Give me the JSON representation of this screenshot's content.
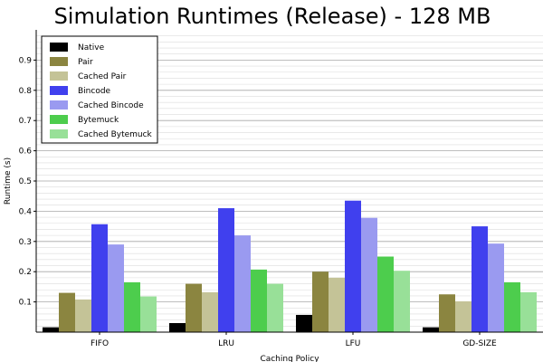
{
  "chart_data": {
    "type": "bar",
    "title": "Simulation Runtimes (Release) - 128 MB",
    "xlabel": "Caching Policy",
    "ylabel": "Runtime (s)",
    "ylim": [
      0,
      1.0
    ],
    "yticks": [
      "0.1",
      "0.2",
      "0.3",
      "0.4",
      "0.5",
      "0.6",
      "0.7",
      "0.8",
      "0.9"
    ],
    "grid": true,
    "legend_position": "top-left",
    "categories": [
      "FIFO",
      "LRU",
      "LFU",
      "GD-SIZE"
    ],
    "series": [
      {
        "name": "Native",
        "color": "#000000",
        "values": [
          0.016,
          0.03,
          0.057,
          0.016
        ]
      },
      {
        "name": "Pair",
        "color": "#8b8540",
        "values": [
          0.13,
          0.16,
          0.2,
          0.125
        ]
      },
      {
        "name": "Cached Pair",
        "color": "#c4c397",
        "values": [
          0.108,
          0.132,
          0.18,
          0.102
        ]
      },
      {
        "name": "Bincode",
        "color": "#4040ee",
        "values": [
          0.357,
          0.41,
          0.435,
          0.35
        ]
      },
      {
        "name": "Cached Bincode",
        "color": "#9a9af0",
        "values": [
          0.29,
          0.32,
          0.378,
          0.293
        ]
      },
      {
        "name": "Bytemuck",
        "color": "#4dcd4d",
        "values": [
          0.165,
          0.207,
          0.25,
          0.165
        ]
      },
      {
        "name": "Cached Bytemuck",
        "color": "#98e098",
        "values": [
          0.118,
          0.16,
          0.203,
          0.132
        ]
      }
    ]
  }
}
